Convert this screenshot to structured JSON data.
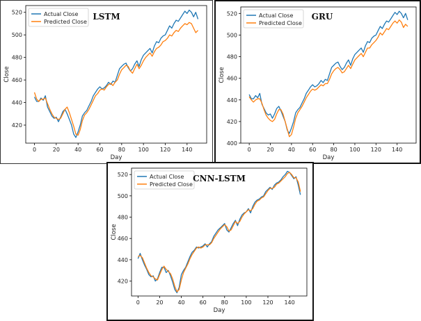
{
  "colors": {
    "actual": "#1f77b4",
    "predicted": "#ff7f0e"
  },
  "chart_data": [
    {
      "type": "line",
      "title": "LSTM",
      "xlabel": "Day",
      "ylabel": "Close",
      "xlim": [
        -8,
        158
      ],
      "ylim": [
        404,
        526
      ],
      "xticks": [
        0,
        20,
        40,
        60,
        80,
        100,
        120,
        140
      ],
      "yticks": [
        420,
        440,
        460,
        480,
        500,
        520
      ],
      "legend_position": "top-left",
      "series": [
        {
          "name": "Actual Close",
          "color": "#1f77b4",
          "x": [
            0,
            2,
            4,
            6,
            8,
            10,
            12,
            14,
            16,
            18,
            20,
            22,
            24,
            26,
            28,
            30,
            32,
            34,
            36,
            38,
            40,
            42,
            44,
            46,
            48,
            50,
            52,
            54,
            56,
            58,
            60,
            62,
            64,
            66,
            68,
            70,
            72,
            74,
            76,
            78,
            80,
            82,
            84,
            86,
            88,
            90,
            92,
            94,
            96,
            98,
            100,
            102,
            104,
            106,
            108,
            110,
            112,
            114,
            116,
            118,
            120,
            122,
            124,
            126,
            128,
            130,
            132,
            134,
            136,
            138,
            140,
            142,
            144,
            146,
            148,
            150
          ],
          "y": [
            445,
            441,
            441,
            444,
            442,
            446,
            436,
            432,
            428,
            426,
            427,
            423,
            427,
            432,
            434,
            430,
            425,
            420,
            412,
            409,
            414,
            420,
            428,
            431,
            433,
            437,
            441,
            446,
            449,
            452,
            454,
            452,
            453,
            455,
            458,
            456,
            459,
            458,
            464,
            470,
            472,
            474,
            475,
            471,
            468,
            470,
            474,
            477,
            472,
            478,
            482,
            484,
            486,
            488,
            484,
            490,
            494,
            493,
            497,
            499,
            500,
            504,
            508,
            506,
            510,
            513,
            512,
            515,
            518,
            521,
            519,
            522,
            520,
            516,
            520,
            514
          ]
        },
        {
          "name": "Predicted Close",
          "color": "#ff7f0e",
          "x": [
            0,
            2,
            4,
            6,
            8,
            10,
            12,
            14,
            16,
            18,
            20,
            22,
            24,
            26,
            28,
            30,
            32,
            34,
            36,
            38,
            40,
            42,
            44,
            46,
            48,
            50,
            52,
            54,
            56,
            58,
            60,
            62,
            64,
            66,
            68,
            70,
            72,
            74,
            76,
            78,
            80,
            82,
            84,
            86,
            88,
            90,
            92,
            94,
            96,
            98,
            100,
            102,
            104,
            106,
            108,
            110,
            112,
            114,
            116,
            118,
            120,
            122,
            124,
            126,
            128,
            130,
            132,
            134,
            136,
            138,
            140,
            142,
            144,
            146,
            148,
            150
          ],
          "y": [
            449,
            443,
            441,
            443,
            443,
            444,
            439,
            434,
            430,
            427,
            426,
            425,
            426,
            430,
            434,
            436,
            431,
            425,
            419,
            412,
            411,
            416,
            424,
            429,
            431,
            434,
            438,
            442,
            446,
            448,
            451,
            452,
            451,
            454,
            456,
            457,
            455,
            458,
            460,
            465,
            469,
            471,
            473,
            472,
            468,
            466,
            470,
            474,
            470,
            473,
            477,
            480,
            482,
            484,
            481,
            485,
            488,
            489,
            491,
            494,
            495,
            497,
            500,
            499,
            502,
            504,
            503,
            506,
            508,
            510,
            509,
            511,
            510,
            506,
            502,
            504
          ]
        }
      ]
    },
    {
      "type": "line",
      "title": "GRU",
      "xlabel": "Day",
      "ylabel": "Close",
      "xlim": [
        -8,
        158
      ],
      "ylim": [
        400,
        526
      ],
      "xticks": [
        0,
        20,
        40,
        60,
        80,
        100,
        120,
        140
      ],
      "yticks": [
        400,
        420,
        440,
        460,
        480,
        500,
        520
      ],
      "legend_position": "top-left",
      "series": [
        {
          "name": "Actual Close",
          "color": "#1f77b4",
          "x": [
            0,
            2,
            4,
            6,
            8,
            10,
            12,
            14,
            16,
            18,
            20,
            22,
            24,
            26,
            28,
            30,
            32,
            34,
            36,
            38,
            40,
            42,
            44,
            46,
            48,
            50,
            52,
            54,
            56,
            58,
            60,
            62,
            64,
            66,
            68,
            70,
            72,
            74,
            76,
            78,
            80,
            82,
            84,
            86,
            88,
            90,
            92,
            94,
            96,
            98,
            100,
            102,
            104,
            106,
            108,
            110,
            112,
            114,
            116,
            118,
            120,
            122,
            124,
            126,
            128,
            130,
            132,
            134,
            136,
            138,
            140,
            142,
            144,
            146,
            148,
            150
          ],
          "y": [
            445,
            441,
            441,
            444,
            442,
            446,
            436,
            432,
            428,
            426,
            427,
            423,
            427,
            432,
            434,
            430,
            425,
            420,
            412,
            409,
            414,
            420,
            428,
            431,
            433,
            437,
            441,
            446,
            449,
            452,
            454,
            452,
            453,
            455,
            458,
            456,
            459,
            458,
            464,
            470,
            472,
            474,
            475,
            471,
            468,
            470,
            474,
            477,
            472,
            478,
            482,
            484,
            486,
            488,
            484,
            490,
            494,
            493,
            497,
            499,
            500,
            504,
            508,
            506,
            510,
            513,
            512,
            515,
            518,
            521,
            519,
            522,
            520,
            516,
            520,
            514
          ]
        },
        {
          "name": "Predicted Close",
          "color": "#ff7f0e",
          "x": [
            0,
            2,
            4,
            6,
            8,
            10,
            12,
            14,
            16,
            18,
            20,
            22,
            24,
            26,
            28,
            30,
            32,
            34,
            36,
            38,
            40,
            42,
            44,
            46,
            48,
            50,
            52,
            54,
            56,
            58,
            60,
            62,
            64,
            66,
            68,
            70,
            72,
            74,
            76,
            78,
            80,
            82,
            84,
            86,
            88,
            90,
            92,
            94,
            96,
            98,
            100,
            102,
            104,
            106,
            108,
            110,
            112,
            114,
            116,
            118,
            120,
            122,
            124,
            126,
            128,
            130,
            132,
            134,
            136,
            138,
            140,
            142,
            144,
            146,
            148,
            150
          ],
          "y": [
            443,
            440,
            438,
            440,
            441,
            441,
            437,
            431,
            426,
            423,
            421,
            420,
            422,
            427,
            431,
            431,
            427,
            420,
            413,
            406,
            408,
            415,
            423,
            428,
            431,
            434,
            438,
            442,
            445,
            448,
            450,
            449,
            450,
            452,
            454,
            453,
            455,
            455,
            459,
            464,
            467,
            469,
            470,
            468,
            465,
            466,
            469,
            472,
            469,
            473,
            477,
            479,
            481,
            483,
            480,
            484,
            488,
            488,
            491,
            493,
            495,
            498,
            502,
            500,
            503,
            506,
            505,
            508,
            511,
            513,
            511,
            514,
            512,
            507,
            510,
            508
          ]
        }
      ]
    },
    {
      "type": "line",
      "title": "CNN-LSTM",
      "xlabel": "Day",
      "ylabel": "Close",
      "xlim": [
        -6,
        156
      ],
      "ylim": [
        406,
        526
      ],
      "xticks": [
        0,
        20,
        40,
        60,
        80,
        100,
        120,
        140
      ],
      "yticks": [
        420,
        440,
        460,
        480,
        500,
        520
      ],
      "legend_position": "top-left",
      "series": [
        {
          "name": "Actual Close",
          "color": "#1f77b4",
          "x": [
            0,
            2,
            4,
            6,
            8,
            10,
            12,
            14,
            16,
            18,
            20,
            22,
            24,
            26,
            28,
            30,
            32,
            34,
            36,
            38,
            40,
            42,
            44,
            46,
            48,
            50,
            52,
            54,
            56,
            58,
            60,
            62,
            64,
            66,
            68,
            70,
            72,
            74,
            76,
            78,
            80,
            82,
            84,
            86,
            88,
            90,
            92,
            94,
            96,
            98,
            100,
            102,
            104,
            106,
            108,
            110,
            112,
            114,
            116,
            118,
            120,
            122,
            124,
            126,
            128,
            130,
            132,
            134,
            136,
            138,
            140,
            142,
            144,
            146,
            148,
            150
          ],
          "y": [
            441,
            446,
            440,
            435,
            431,
            426,
            424,
            425,
            420,
            422,
            428,
            433,
            433,
            428,
            430,
            425,
            419,
            412,
            409,
            414,
            426,
            430,
            433,
            438,
            443,
            447,
            449,
            452,
            451,
            452,
            453,
            455,
            452,
            455,
            457,
            462,
            465,
            468,
            470,
            472,
            474,
            468,
            466,
            470,
            474,
            477,
            472,
            478,
            482,
            484,
            485,
            488,
            484,
            490,
            494,
            496,
            497,
            499,
            500,
            504,
            506,
            508,
            506,
            510,
            512,
            513,
            515,
            518,
            520,
            523,
            522,
            519,
            516,
            518,
            510,
            501
          ]
        },
        {
          "name": "Predicted Close",
          "color": "#ff7f0e",
          "x": [
            0,
            2,
            4,
            6,
            8,
            10,
            12,
            14,
            16,
            18,
            20,
            22,
            24,
            26,
            28,
            30,
            32,
            34,
            36,
            38,
            40,
            42,
            44,
            46,
            48,
            50,
            52,
            54,
            56,
            58,
            60,
            62,
            64,
            66,
            68,
            70,
            72,
            74,
            76,
            78,
            80,
            82,
            84,
            86,
            88,
            90,
            92,
            94,
            96,
            98,
            100,
            102,
            104,
            106,
            108,
            110,
            112,
            114,
            116,
            118,
            120,
            122,
            124,
            126,
            128,
            130,
            132,
            134,
            136,
            138,
            140,
            142,
            144,
            146,
            148,
            150
          ],
          "y": [
            443,
            444,
            442,
            437,
            432,
            428,
            425,
            424,
            422,
            421,
            426,
            431,
            434,
            431,
            429,
            427,
            422,
            415,
            410,
            412,
            421,
            428,
            432,
            436,
            441,
            445,
            448,
            451,
            452,
            451,
            452,
            454,
            454,
            454,
            456,
            460,
            463,
            466,
            469,
            471,
            473,
            471,
            467,
            468,
            472,
            476,
            474,
            476,
            480,
            483,
            485,
            487,
            486,
            488,
            492,
            495,
            496,
            498,
            499,
            502,
            505,
            507,
            507,
            508,
            511,
            512,
            514,
            516,
            518,
            521,
            522,
            520,
            517,
            517,
            513,
            504
          ]
        }
      ]
    }
  ]
}
